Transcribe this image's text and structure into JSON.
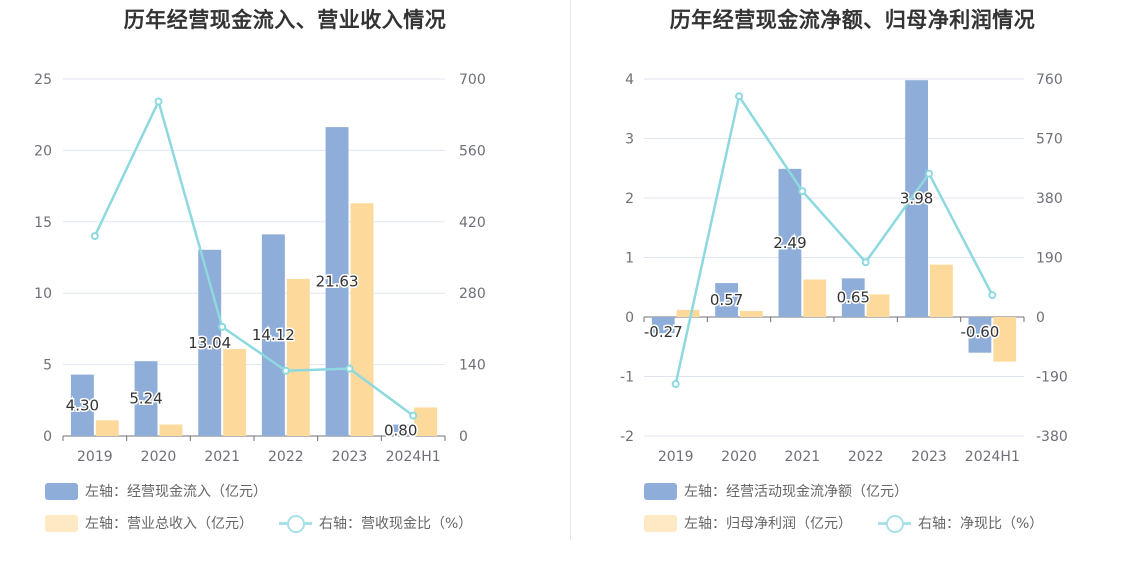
{
  "chart_data": [
    {
      "type": "bar",
      "title": "历年经营现金流入、营业收入情况",
      "categories": [
        "2019",
        "2020",
        "2021",
        "2022",
        "2023",
        "2024H1"
      ],
      "left_axis": {
        "ylim": [
          0,
          25
        ],
        "ticks": [
          "0",
          "5",
          "10",
          "15",
          "20",
          "25"
        ]
      },
      "right_axis": {
        "ylim": [
          0,
          700
        ],
        "ticks": [
          "0",
          "140",
          "280",
          "420",
          "560",
          "700"
        ]
      },
      "series": [
        {
          "name": "左轴：经营现金流入（亿元）",
          "kind": "bar",
          "axis": "left",
          "color": "#8eadd9",
          "values": [
            4.3,
            5.24,
            13.04,
            14.12,
            21.63,
            0.8
          ],
          "labels": [
            "4.30",
            "5.24",
            "13.04",
            "14.12",
            "21.63",
            "0.80"
          ]
        },
        {
          "name": "左轴：营业总收入（亿元）",
          "kind": "bar",
          "axis": "left",
          "color": "#fdd99b",
          "values": [
            1.1,
            0.8,
            6.1,
            11.0,
            16.3,
            2.0
          ]
        },
        {
          "name": "右轴：营收现金比（%）",
          "kind": "line",
          "axis": "right",
          "color": "#8dd9df",
          "values": [
            392,
            656,
            214,
            128,
            132,
            40
          ]
        }
      ],
      "grid": true,
      "legend": "bottom"
    },
    {
      "type": "bar",
      "title": "历年经营现金流净额、归母净利润情况",
      "categories": [
        "2019",
        "2020",
        "2021",
        "2022",
        "2023",
        "2024H1"
      ],
      "left_axis": {
        "ylim": [
          -2,
          4
        ],
        "ticks": [
          "-2",
          "-1",
          "0",
          "1",
          "2",
          "3",
          "4"
        ]
      },
      "right_axis": {
        "ylim": [
          -380,
          760
        ],
        "ticks": [
          "-380",
          "-190",
          "0",
          "190",
          "380",
          "570",
          "760"
        ]
      },
      "series": [
        {
          "name": "左轴：经营活动现金流净额（亿元）",
          "kind": "bar",
          "axis": "left",
          "color": "#8eadd9",
          "values": [
            -0.27,
            0.57,
            2.49,
            0.65,
            3.98,
            -0.6
          ],
          "labels": [
            "-0.27",
            "0.57",
            "2.49",
            "0.65",
            "3.98",
            "-0.60"
          ]
        },
        {
          "name": "左轴：归母净利润（亿元）",
          "kind": "bar",
          "axis": "left",
          "color": "#fdd99b",
          "values": [
            0.12,
            0.1,
            0.63,
            0.38,
            0.88,
            -0.75
          ]
        },
        {
          "name": "右轴：净现比（%）",
          "kind": "line",
          "axis": "right",
          "color": "#8dd9df",
          "values": [
            -214,
            705,
            402,
            175,
            458,
            70
          ]
        }
      ],
      "grid": true,
      "legend": "bottom"
    }
  ]
}
